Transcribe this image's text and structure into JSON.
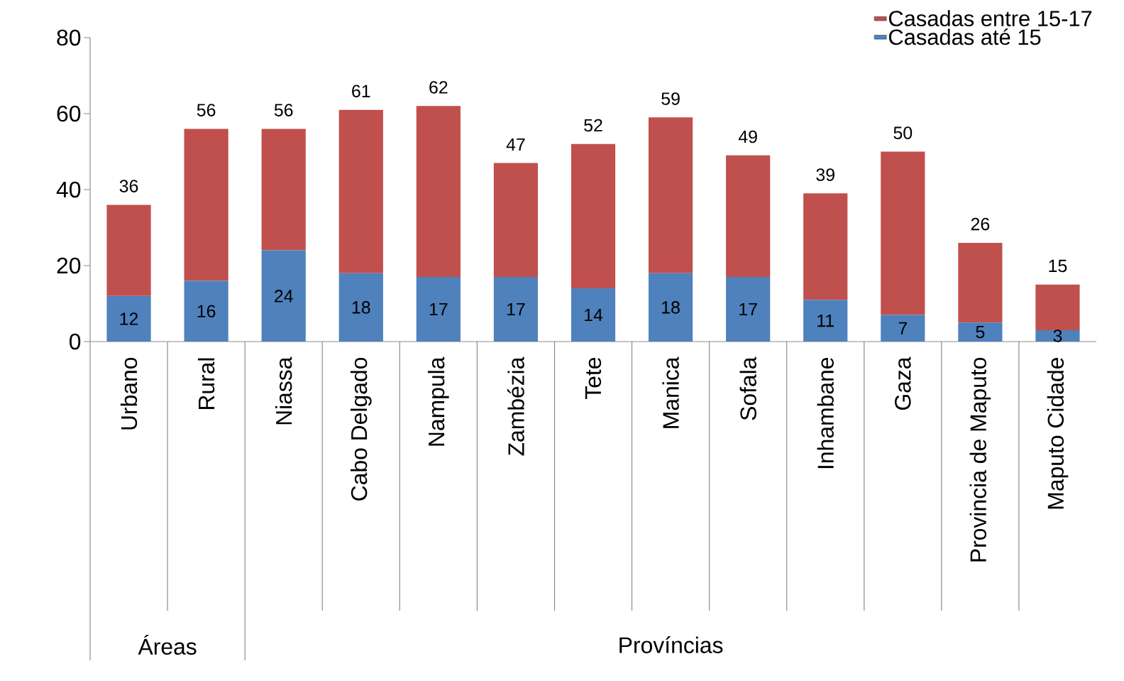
{
  "chart_data": {
    "type": "bar",
    "stacked": true,
    "categories": [
      "Urbano",
      "Rural",
      "Niassa",
      "Cabo Delgado",
      "Nampula",
      "Zambézia",
      "Tete",
      "Manica",
      "Sofala",
      "Inhambane",
      "Gaza",
      "Provincia de Maputo",
      "Maputo Cidade"
    ],
    "series": [
      {
        "name": "Casadas até 15",
        "color": "#4f81bd",
        "values": [
          12,
          16,
          24,
          18,
          17,
          17,
          14,
          18,
          17,
          11,
          7,
          5,
          3
        ],
        "value_labels": [
          "12",
          "16",
          "24",
          "18",
          "17",
          "17",
          "14",
          "18",
          "17",
          "11",
          "7",
          "5",
          "3"
        ]
      },
      {
        "name": "Casadas entre 15-17",
        "color": "#c0504d",
        "values": [
          24,
          40,
          32,
          43,
          45,
          30,
          38,
          41,
          32,
          28,
          43,
          21,
          12
        ]
      }
    ],
    "totals": [
      "36",
      "56",
      "56",
      "61",
      "62",
      "47",
      "52",
      "59",
      "49",
      "39",
      "50",
      "26",
      "15"
    ],
    "ylim": [
      0,
      80
    ],
    "yticks": [
      0,
      20,
      40,
      60,
      80
    ],
    "legend": "top right",
    "annotations": [
      "Áreas",
      "Províncias"
    ]
  }
}
